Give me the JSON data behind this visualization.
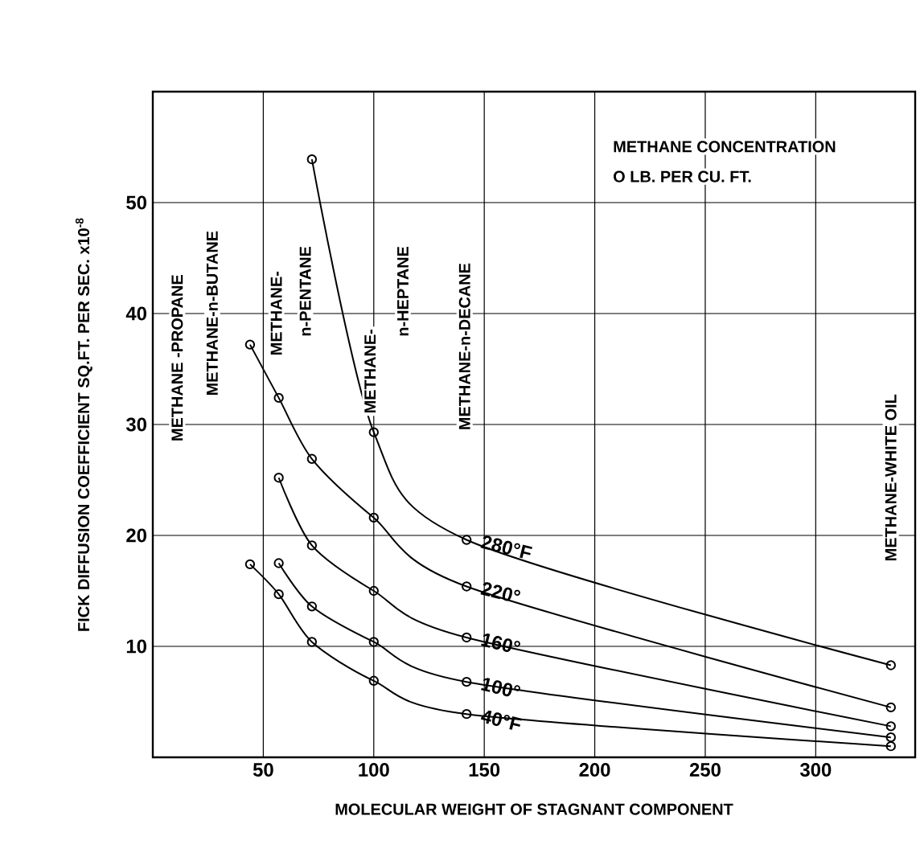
{
  "chart_data": {
    "type": "line",
    "xlabel": "MOLECULAR WEIGHT OF  STAGNANT COMPONENT",
    "ylabel": "FICK DIFFUSION  COEFFICIENT SQ.FT. PER SEC. x10$^{-8}$",
    "x": [
      44,
      57,
      72,
      100,
      142,
      334
    ],
    "series": [
      {
        "name": "280°F",
        "color": "#000000",
        "values": [
          null,
          null,
          53.9,
          29.3,
          19.6,
          8.3
        ]
      },
      {
        "name": "220°",
        "color": "#000000",
        "values": [
          37.2,
          32.4,
          26.9,
          21.6,
          15.4,
          4.5
        ]
      },
      {
        "name": "160°",
        "color": "#000000",
        "values": [
          null,
          25.2,
          19.1,
          15.0,
          10.8,
          2.8
        ]
      },
      {
        "name": "100°",
        "color": "#000000",
        "values": [
          null,
          17.5,
          13.6,
          10.4,
          6.8,
          1.8
        ]
      },
      {
        "name": "40°F",
        "color": "#000000",
        "values": [
          17.4,
          14.7,
          10.4,
          6.9,
          3.9,
          1.0
        ]
      }
    ],
    "xlim": [
      0,
      345
    ],
    "ylim": [
      0,
      60
    ],
    "xticks": [
      50,
      100,
      150,
      200,
      250,
      300
    ],
    "yticks": [
      10,
      20,
      30,
      40,
      50
    ],
    "grid": true,
    "legend": false,
    "marker": "circle",
    "line_style": "solid",
    "annotations": [
      "METHANE CONCENTRATION",
      "O LB. PER CU. FT.",
      "METHANE -PROPANE",
      "METHANE-n-BUTANE",
      "METHANE-",
      "n-PENTANE",
      "METHANE-",
      "n-HEPTANE",
      "METHANE-n-DECANE",
      "METHANE-WHITE OIL"
    ]
  }
}
